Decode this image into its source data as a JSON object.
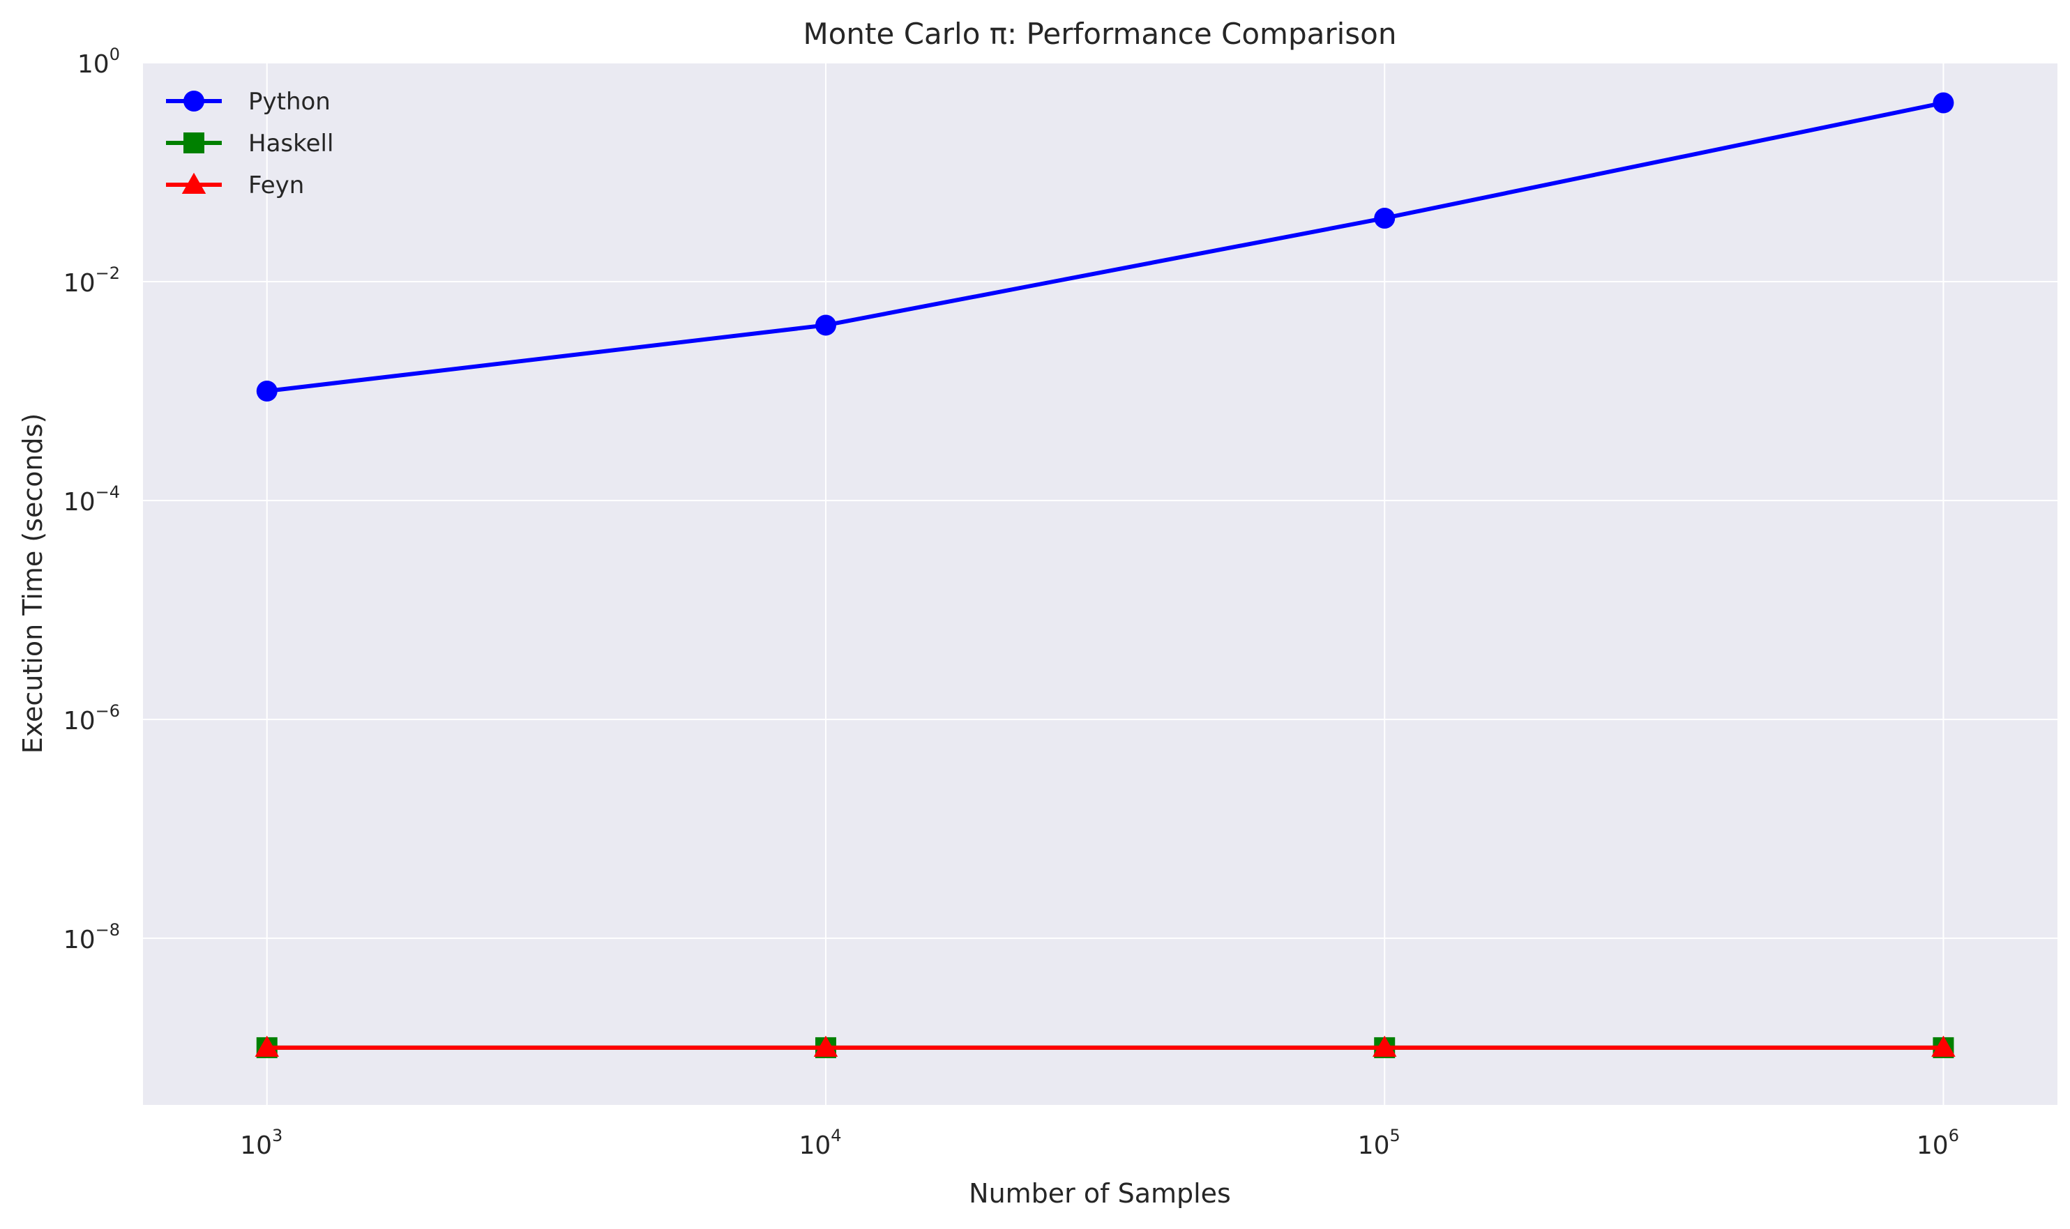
{
  "chart_data": {
    "type": "line",
    "title": "Monte Carlo π: Performance Comparison",
    "xlabel": "Number of Samples",
    "ylabel": "Execution Time (seconds)",
    "x_scale": "log",
    "y_scale": "log",
    "x": [
      1000,
      10000,
      100000,
      1000000
    ],
    "xlim": [
      600,
      1600000
    ],
    "ylim": [
      3e-10,
      1
    ],
    "x_ticks": [
      {
        "base": "10",
        "exp": "3",
        "value": 1000
      },
      {
        "base": "10",
        "exp": "4",
        "value": 10000
      },
      {
        "base": "10",
        "exp": "5",
        "value": 100000
      },
      {
        "base": "10",
        "exp": "6",
        "value": 1000000
      }
    ],
    "y_ticks": [
      {
        "base": "10",
        "exp": "0",
        "value": 1
      },
      {
        "base": "10",
        "exp": "−2",
        "value": 0.01
      },
      {
        "base": "10",
        "exp": "−4",
        "value": 0.0001
      },
      {
        "base": "10",
        "exp": "−6",
        "value": 1e-06
      },
      {
        "base": "10",
        "exp": "−8",
        "value": 1e-08
      }
    ],
    "grid": true,
    "legend_position": "top-left",
    "series": [
      {
        "name": "Python",
        "marker": "circle",
        "color": "#0000ff",
        "values": [
          0.001,
          0.004,
          0.038,
          0.43
        ]
      },
      {
        "name": "Haskell",
        "marker": "square",
        "color": "#008000",
        "values": [
          1e-09,
          1e-09,
          1e-09,
          1e-09
        ]
      },
      {
        "name": "Feyn",
        "marker": "triangle",
        "color": "#ff0000",
        "values": [
          1e-09,
          1e-09,
          1e-09,
          1e-09
        ]
      }
    ]
  },
  "colors": {
    "plot_background": "#eaeaf2",
    "grid": "#ffffff",
    "text": "#262626"
  }
}
